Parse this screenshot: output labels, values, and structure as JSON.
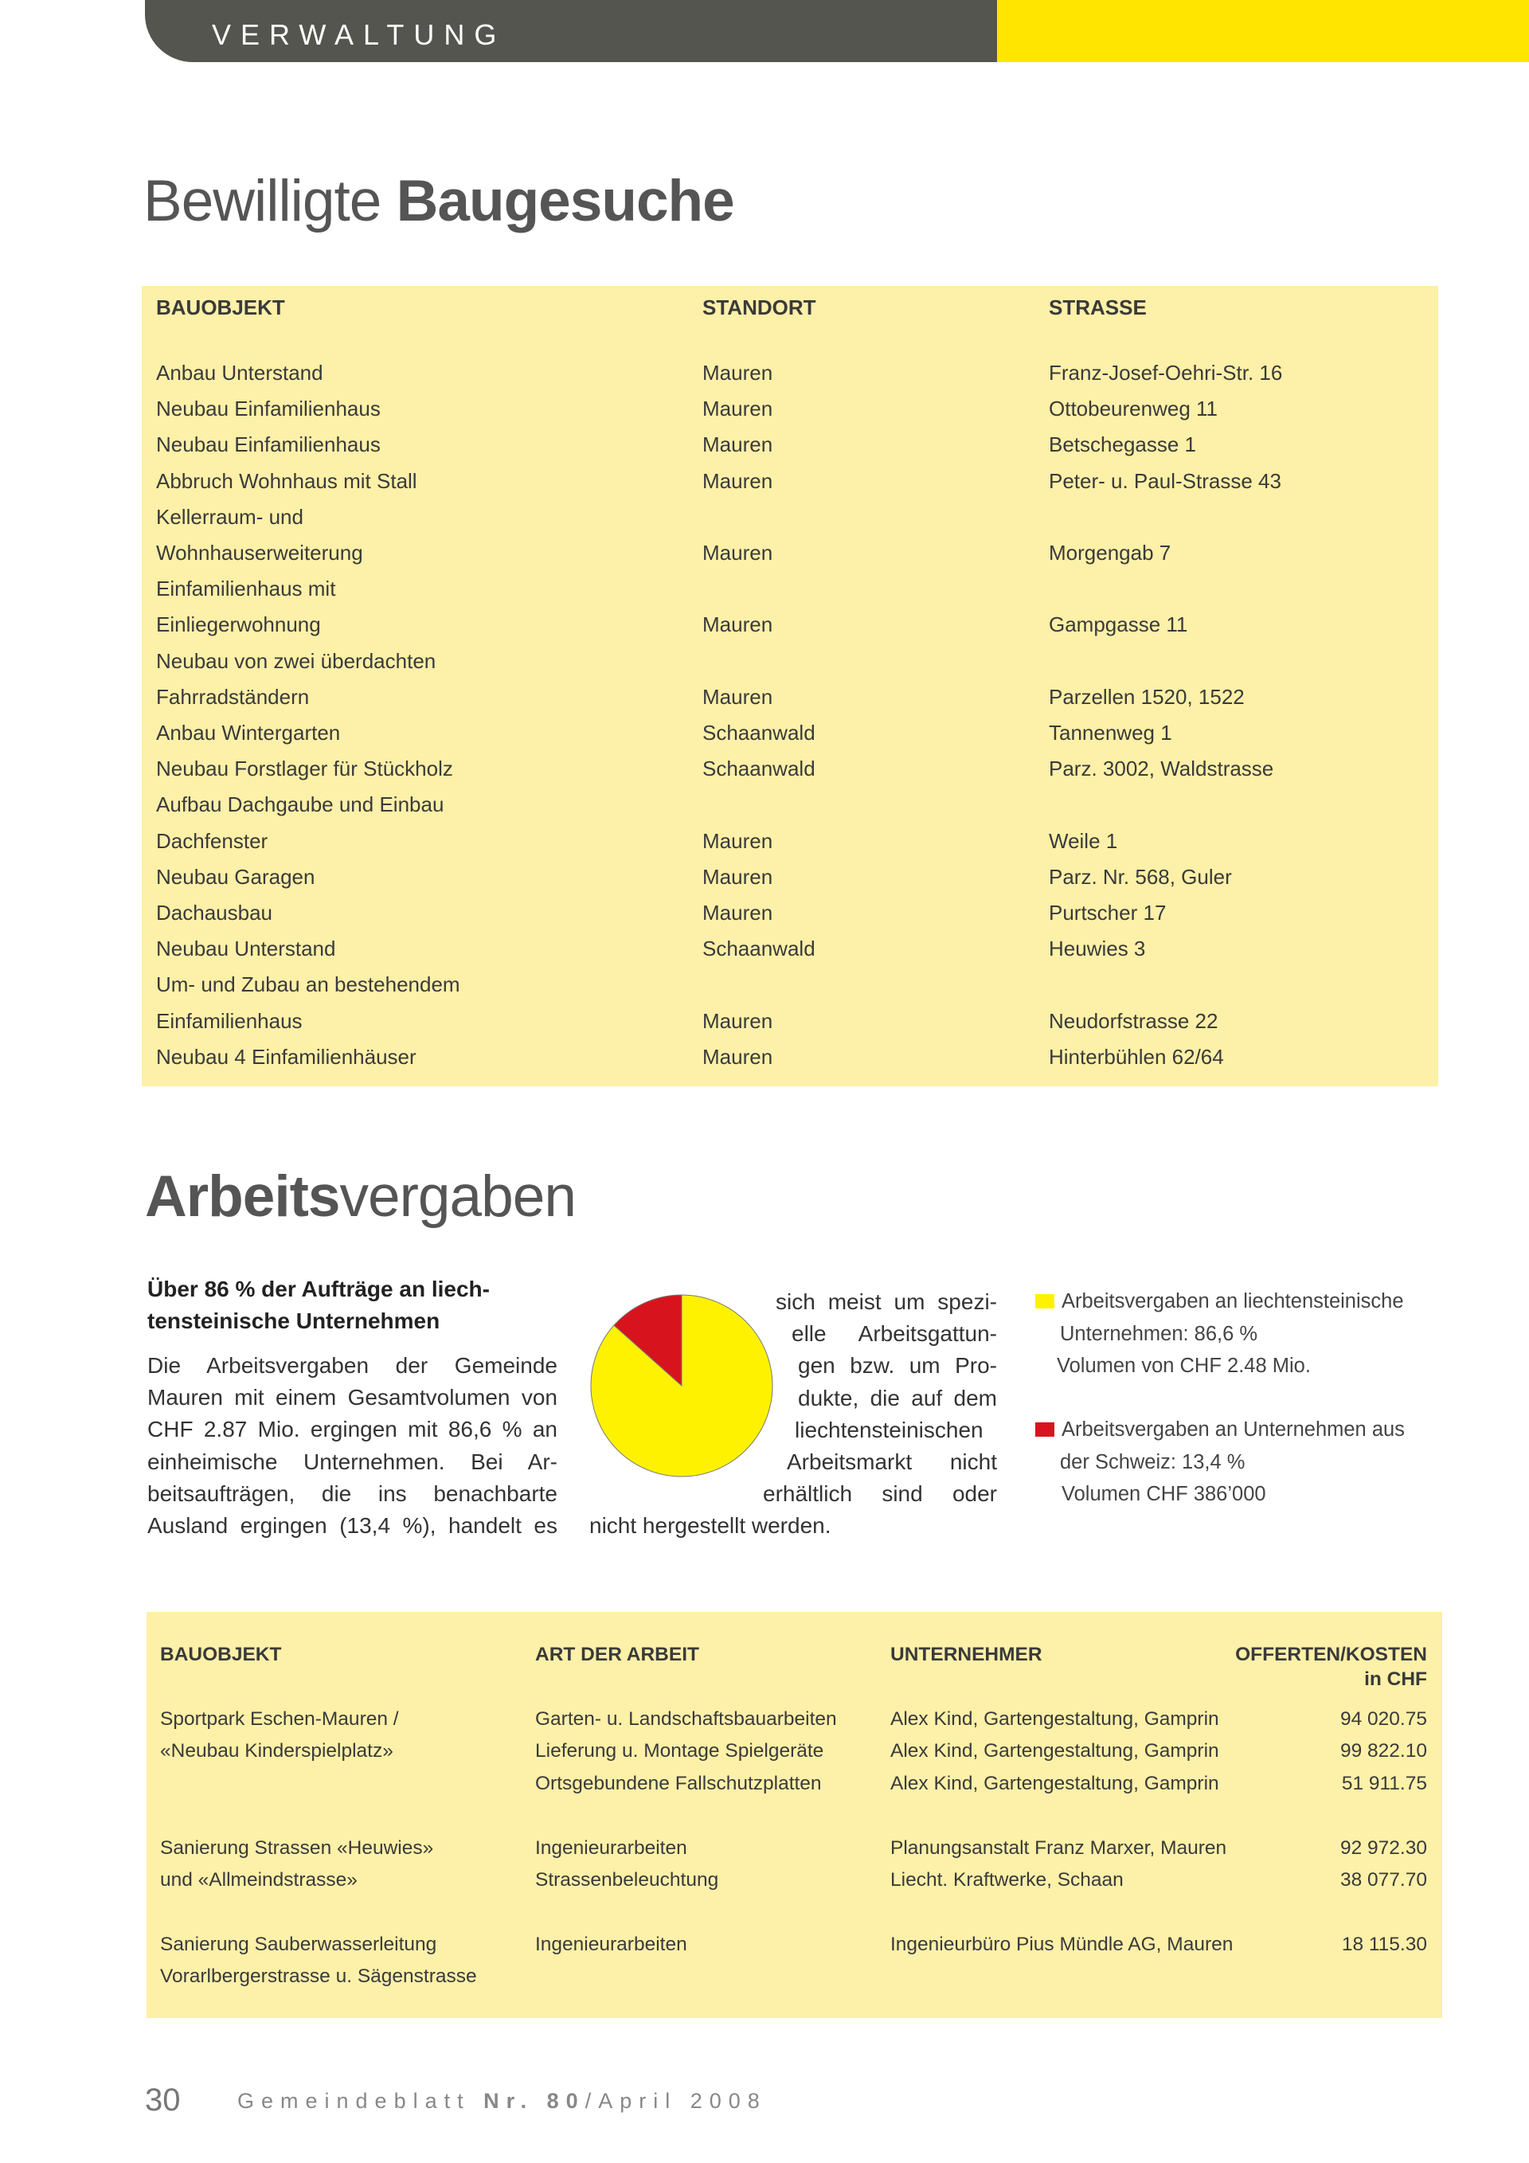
{
  "header": {
    "section": "VERWALTUNG"
  },
  "baugesuche": {
    "title_light": "Bewilligte",
    "title_bold": "Baugesuche",
    "table": {
      "columns": [
        "BAUOBJEKT",
        "STANDORT",
        "STRASSE"
      ],
      "rows": [
        [
          [
            "Anbau Unterstand"
          ],
          "Mauren",
          "Franz-Josef-Oehri-Str. 16"
        ],
        [
          [
            "Neubau Einfamilienhaus"
          ],
          "Mauren",
          "Ottobeurenweg 11"
        ],
        [
          [
            "Neubau Einfamilienhaus"
          ],
          "Mauren",
          "Betschegasse 1"
        ],
        [
          [
            "Abbruch Wohnhaus mit Stall"
          ],
          "Mauren",
          "Peter- u. Paul-Strasse 43"
        ],
        [
          [
            "Kellerraum- und",
            "Wohnhauserweiterung"
          ],
          "Mauren",
          "Morgengab 7"
        ],
        [
          [
            "Einfamilienhaus mit",
            "Einliegerwohnung"
          ],
          "Mauren",
          "Gampgasse 11"
        ],
        [
          [
            "Neubau von zwei überdachten",
            "Fahrradständern"
          ],
          "Mauren",
          "Parzellen 1520, 1522"
        ],
        [
          [
            "Anbau Wintergarten"
          ],
          "Schaanwald",
          "Tannenweg 1"
        ],
        [
          [
            "Neubau Forstlager für Stückholz"
          ],
          "Schaanwald",
          "Parz. 3002, Waldstrasse"
        ],
        [
          [
            "Aufbau Dachgaube und Einbau",
            "Dachfenster"
          ],
          "Mauren",
          "Weile 1"
        ],
        [
          [
            "Neubau Garagen"
          ],
          "Mauren",
          "Parz. Nr. 568, Guler"
        ],
        [
          [
            "Dachausbau"
          ],
          "Mauren",
          "Purtscher 17"
        ],
        [
          [
            "Neubau Unterstand"
          ],
          "Schaanwald",
          "Heuwies 3"
        ],
        [
          [
            "Um- und Zubau an bestehendem",
            "Einfamilienhaus"
          ],
          "Mauren",
          "Neudorfstrasse 22"
        ],
        [
          [
            "Neubau 4 Einfamilienhäuser"
          ],
          "Mauren",
          "Hinterbühlen 62/64"
        ]
      ]
    }
  },
  "arbeitsvergaben": {
    "title_bold": "Arbeits",
    "title_light": "vergaben",
    "heading": [
      "Über 86 % der Aufträge an liech-",
      "tensteinische Unternehmen"
    ],
    "body_left": [
      "Die Arbeitsvergaben der Gemeinde",
      "Mauren mit einem Gesamtvolumen von",
      "CHF 2.87 Mio. ergingen mit 86,6 % an",
      "einheimische Unternehmen. Bei Ar-",
      "beitsaufträgen, die ins benachbarte",
      "Ausland ergingen (13,4 %), handelt es"
    ],
    "body_right": [
      "sich meist um spezi-",
      "elle Arbeitsgattun-",
      "gen bzw. um Pro-",
      "dukte, die auf dem",
      "liechtensteinischen",
      "Arbeitsmarkt nicht",
      "erhältlich sind oder",
      "nicht hergestellt werden."
    ],
    "chart_data": {
      "type": "pie",
      "values": [
        86.6,
        13.4
      ],
      "legend": [
        {
          "color": "#fff200",
          "lines": [
            "Arbeitsvergaben an liechtensteinische",
            "Unternehmen: 86,6 %",
            "Volumen von CHF 2.48 Mio."
          ]
        },
        {
          "color": "#d7141e",
          "lines": [
            "Arbeitsvergaben an Unternehmen aus",
            "der Schweiz: 13,4 %",
            "Volumen CHF 386’000"
          ]
        }
      ]
    },
    "table": {
      "columns": [
        "BAUOBJEKT",
        "ART DER ARBEIT",
        "UNTERNEHMER",
        [
          "OFFERTEN/KOSTEN",
          "in CHF"
        ]
      ],
      "groups": [
        [
          {
            "bauobjekt": "Sportpark Eschen-Mauren /",
            "art": "Garten- u. Landschaftsbauarbeiten",
            "unternehmer": "Alex Kind, Gartengestaltung, Gamprin",
            "kosten": "94 020.75"
          },
          {
            "bauobjekt": "«Neubau Kinderspielplatz»",
            "art": "Lieferung u. Montage Spielgeräte",
            "unternehmer": "Alex Kind, Gartengestaltung, Gamprin",
            "kosten": "99 822.10"
          },
          {
            "art": "Ortsgebundene Fallschutzplatten",
            "unternehmer": "Alex Kind, Gartengestaltung, Gamprin",
            "kosten": "51 911.75"
          }
        ],
        [
          {
            "bauobjekt": "Sanierung Strassen «Heuwies»",
            "art": "Ingenieurarbeiten",
            "unternehmer": "Planungsanstalt Franz Marxer, Mauren",
            "kosten": "92 972.30"
          },
          {
            "bauobjekt": "und «Allmeindstrasse»",
            "art": "Strassenbeleuchtung",
            "unternehmer": "Liecht. Kraftwerke, Schaan",
            "kosten": "38 077.70"
          }
        ],
        [
          {
            "bauobjekt": "Sanierung Sauberwasserleitung",
            "art": "Ingenieurarbeiten",
            "unternehmer": "Ingenieurbüro Pius Mündle AG, Mauren",
            "kosten": "18 115.30"
          },
          {
            "bauobjekt": "Vorarlbergerstrasse u. Sägenstrasse"
          }
        ]
      ]
    }
  },
  "footer": {
    "page": "30",
    "publication": "Gemeindeblatt",
    "issue": "Nr. 80",
    "date": "/April 2008"
  }
}
